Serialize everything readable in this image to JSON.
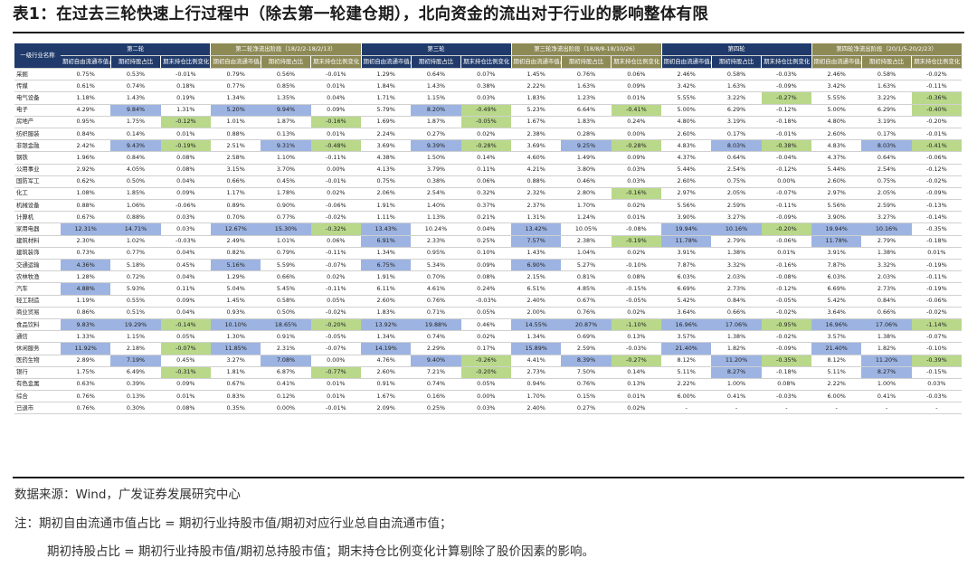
{
  "title": "表1：在过去三轮快速上行过程中（除去第一轮建仓期），北向资金的流出对于行业的影响整体有限",
  "table": {
    "corner_label": "一级行业名称",
    "groups": [
      {
        "label": "第二轮",
        "style": "blue"
      },
      {
        "label": "第二轮净流出阶段（18/2/2-18/2/13）",
        "style": "olive"
      },
      {
        "label": "第三轮",
        "style": "blue"
      },
      {
        "label": "第三轮净流出阶段（18/8/8-18/10/26）",
        "style": "olive"
      },
      {
        "label": "第四轮",
        "style": "blue"
      },
      {
        "label": "第四轮净流出阶段（20/1/5-20/2/23）",
        "style": "olive"
      }
    ],
    "subheaders": [
      "期初自由流通市值占比",
      "期初持股占比",
      "期末持仓比例变化"
    ],
    "rows": [
      {
        "name": "采掘",
        "v": [
          "0.75%",
          "0.53%",
          "-0.01%",
          "0.79%",
          "0.56%",
          "-0.01%",
          "1.29%",
          "0.64%",
          "0.07%",
          "1.45%",
          "0.76%",
          "0.06%",
          "2.46%",
          "0.58%",
          "-0.03%",
          "2.46%",
          "0.58%",
          "-0.02%"
        ],
        "h": {}
      },
      {
        "name": "传媒",
        "v": [
          "0.61%",
          "0.74%",
          "0.18%",
          "0.77%",
          "0.85%",
          "0.01%",
          "1.84%",
          "1.43%",
          "0.38%",
          "2.22%",
          "1.63%",
          "0.09%",
          "3.42%",
          "1.63%",
          "-0.09%",
          "3.42%",
          "1.63%",
          "-0.11%"
        ],
        "h": {}
      },
      {
        "name": "电气设备",
        "v": [
          "1.18%",
          "1.43%",
          "0.19%",
          "1.34%",
          "1.35%",
          "0.04%",
          "1.71%",
          "1.15%",
          "0.03%",
          "1.83%",
          "1.23%",
          "0.01%",
          "5.55%",
          "3.22%",
          "-0.27%",
          "5.55%",
          "3.22%",
          "-0.36%"
        ],
        "h": {
          "14": "g",
          "17": "g"
        }
      },
      {
        "name": "电子",
        "v": [
          "4.29%",
          "9.84%",
          "1.31%",
          "5.20%",
          "9.94%",
          "0.09%",
          "5.79%",
          "8.20%",
          "-0.49%",
          "5.23%",
          "6.64%",
          "-0.41%",
          "5.00%",
          "6.29%",
          "-0.12%",
          "5.00%",
          "6.29%",
          "-0.40%"
        ],
        "h": {
          "1": "b",
          "3": "b",
          "4": "b",
          "7": "b",
          "8": "g",
          "11": "g",
          "17": "g"
        }
      },
      {
        "name": "房地产",
        "v": [
          "0.95%",
          "1.75%",
          "-0.12%",
          "1.01%",
          "1.87%",
          "-0.16%",
          "1.69%",
          "1.87%",
          "-0.05%",
          "1.67%",
          "1.83%",
          "0.24%",
          "4.80%",
          "3.19%",
          "-0.18%",
          "4.80%",
          "3.19%",
          "-0.20%"
        ],
        "h": {
          "2": "g",
          "5": "g",
          "8": "g"
        }
      },
      {
        "name": "纺织服装",
        "v": [
          "0.84%",
          "0.14%",
          "0.01%",
          "0.88%",
          "0.13%",
          "0.01%",
          "2.24%",
          "0.27%",
          "0.02%",
          "2.38%",
          "0.28%",
          "0.00%",
          "2.60%",
          "0.17%",
          "-0.01%",
          "2.60%",
          "0.17%",
          "-0.01%"
        ],
        "h": {}
      },
      {
        "name": "非银金融",
        "v": [
          "2.42%",
          "9.43%",
          "-0.19%",
          "2.51%",
          "9.31%",
          "-0.48%",
          "3.69%",
          "9.39%",
          "-0.28%",
          "3.69%",
          "9.25%",
          "-0.28%",
          "4.83%",
          "8.03%",
          "-0.38%",
          "4.83%",
          "8.03%",
          "-0.41%"
        ],
        "h": {
          "1": "b",
          "2": "g",
          "4": "b",
          "5": "g",
          "7": "b",
          "8": "g",
          "10": "b",
          "11": "g",
          "13": "b",
          "14": "g",
          "16": "b",
          "17": "g"
        }
      },
      {
        "name": "钢铁",
        "v": [
          "1.96%",
          "0.84%",
          "0.08%",
          "2.58%",
          "1.10%",
          "-0.11%",
          "4.38%",
          "1.50%",
          "0.14%",
          "4.60%",
          "1.49%",
          "0.09%",
          "4.37%",
          "0.64%",
          "-0.04%",
          "4.37%",
          "0.64%",
          "-0.06%"
        ],
        "h": {}
      },
      {
        "name": "公用事业",
        "v": [
          "2.92%",
          "4.05%",
          "0.08%",
          "3.15%",
          "3.70%",
          "0.00%",
          "4.13%",
          "3.79%",
          "0.11%",
          "4.21%",
          "3.80%",
          "0.03%",
          "5.44%",
          "2.54%",
          "-0.12%",
          "5.44%",
          "2.54%",
          "-0.12%"
        ],
        "h": {}
      },
      {
        "name": "国防军工",
        "v": [
          "0.62%",
          "0.50%",
          "0.04%",
          "0.66%",
          "0.45%",
          "-0.01%",
          "0.75%",
          "0.38%",
          "0.06%",
          "0.88%",
          "0.46%",
          "0.03%",
          "2.60%",
          "0.75%",
          "0.00%",
          "2.60%",
          "0.75%",
          "-0.02%"
        ],
        "h": {}
      },
      {
        "name": "化工",
        "v": [
          "1.08%",
          "1.85%",
          "0.09%",
          "1.17%",
          "1.78%",
          "0.02%",
          "2.06%",
          "2.54%",
          "0.32%",
          "2.32%",
          "2.80%",
          "-0.16%",
          "2.97%",
          "2.05%",
          "-0.07%",
          "2.97%",
          "2.05%",
          "-0.09%"
        ],
        "h": {
          "11": "g"
        }
      },
      {
        "name": "机械设备",
        "v": [
          "0.88%",
          "1.06%",
          "-0.06%",
          "0.89%",
          "0.90%",
          "-0.06%",
          "1.91%",
          "1.40%",
          "0.37%",
          "2.37%",
          "1.70%",
          "0.02%",
          "5.56%",
          "2.59%",
          "-0.11%",
          "5.56%",
          "2.59%",
          "-0.13%"
        ],
        "h": {}
      },
      {
        "name": "计算机",
        "v": [
          "0.67%",
          "0.88%",
          "0.03%",
          "0.70%",
          "0.77%",
          "-0.02%",
          "1.11%",
          "1.13%",
          "0.21%",
          "1.31%",
          "1.24%",
          "0.01%",
          "3.90%",
          "3.27%",
          "-0.09%",
          "3.90%",
          "3.27%",
          "-0.14%"
        ],
        "h": {}
      },
      {
        "name": "家用电器",
        "v": [
          "12.31%",
          "14.71%",
          "0.03%",
          "12.67%",
          "15.30%",
          "-0.32%",
          "13.43%",
          "10.24%",
          "0.04%",
          "13.42%",
          "10.05%",
          "-0.08%",
          "19.94%",
          "10.16%",
          "-0.20%",
          "19.94%",
          "10.16%",
          "-0.35%"
        ],
        "h": {
          "0": "b",
          "1": "b",
          "3": "b",
          "4": "b",
          "5": "g",
          "6": "b",
          "9": "b",
          "12": "b",
          "13": "b",
          "14": "g",
          "15": "b",
          "16": "b"
        }
      },
      {
        "name": "建筑材料",
        "v": [
          "2.30%",
          "1.02%",
          "-0.03%",
          "2.49%",
          "1.01%",
          "0.06%",
          "6.91%",
          "2.33%",
          "0.25%",
          "7.57%",
          "2.38%",
          "-0.19%",
          "11.78%",
          "2.79%",
          "-0.06%",
          "11.78%",
          "2.79%",
          "-0.18%"
        ],
        "h": {
          "6": "b",
          "9": "b",
          "11": "g",
          "12": "b",
          "15": "b"
        }
      },
      {
        "name": "建筑装饰",
        "v": [
          "0.73%",
          "0.77%",
          "0.04%",
          "0.82%",
          "0.79%",
          "-0.11%",
          "1.34%",
          "0.95%",
          "0.10%",
          "1.43%",
          "1.04%",
          "0.02%",
          "3.91%",
          "1.38%",
          "0.01%",
          "3.91%",
          "1.38%",
          "0.01%"
        ],
        "h": {}
      },
      {
        "name": "交通运输",
        "v": [
          "4.36%",
          "5.18%",
          "0.45%",
          "5.16%",
          "5.59%",
          "-0.07%",
          "6.75%",
          "5.34%",
          "0.09%",
          "6.90%",
          "5.27%",
          "-0.10%",
          "7.87%",
          "3.32%",
          "-0.16%",
          "7.87%",
          "3.32%",
          "-0.19%"
        ],
        "h": {
          "0": "b",
          "3": "b",
          "6": "b",
          "9": "b"
        }
      },
      {
        "name": "农林牧渔",
        "v": [
          "1.28%",
          "0.72%",
          "0.04%",
          "1.29%",
          "0.66%",
          "0.02%",
          "1.91%",
          "0.70%",
          "0.08%",
          "2.15%",
          "0.81%",
          "0.08%",
          "6.03%",
          "2.03%",
          "-0.08%",
          "6.03%",
          "2.03%",
          "-0.11%"
        ],
        "h": {}
      },
      {
        "name": "汽车",
        "v": [
          "4.88%",
          "5.93%",
          "0.11%",
          "5.04%",
          "5.45%",
          "-0.11%",
          "6.11%",
          "4.61%",
          "0.24%",
          "6.51%",
          "4.85%",
          "-0.15%",
          "6.69%",
          "2.73%",
          "-0.12%",
          "6.69%",
          "2.73%",
          "-0.19%"
        ],
        "h": {
          "0": "b"
        }
      },
      {
        "name": "轻工制造",
        "v": [
          "1.19%",
          "0.55%",
          "0.09%",
          "1.45%",
          "0.58%",
          "0.05%",
          "2.60%",
          "0.76%",
          "-0.03%",
          "2.40%",
          "0.67%",
          "-0.05%",
          "5.42%",
          "0.84%",
          "-0.05%",
          "5.42%",
          "0.84%",
          "-0.06%"
        ],
        "h": {}
      },
      {
        "name": "商业贸易",
        "v": [
          "0.86%",
          "0.51%",
          "0.04%",
          "0.93%",
          "0.50%",
          "-0.02%",
          "1.83%",
          "0.71%",
          "0.05%",
          "2.00%",
          "0.76%",
          "0.02%",
          "3.64%",
          "0.66%",
          "-0.02%",
          "3.64%",
          "0.66%",
          "-0.02%"
        ],
        "h": {}
      },
      {
        "name": "食品饮料",
        "v": [
          "9.83%",
          "19.29%",
          "-0.14%",
          "10.10%",
          "18.65%",
          "-0.20%",
          "13.92%",
          "19.88%",
          "0.46%",
          "14.55%",
          "20.87%",
          "-1.10%",
          "16.96%",
          "17.06%",
          "-0.95%",
          "16.96%",
          "17.06%",
          "-1.14%"
        ],
        "h": {
          "0": "b",
          "1": "b",
          "2": "g",
          "3": "b",
          "4": "b",
          "5": "g",
          "6": "b",
          "7": "b",
          "9": "b",
          "10": "b",
          "11": "g",
          "12": "b",
          "13": "b",
          "14": "g",
          "15": "b",
          "16": "b",
          "17": "g"
        }
      },
      {
        "name": "通信",
        "v": [
          "1.33%",
          "1.15%",
          "0.05%",
          "1.30%",
          "0.91%",
          "-0.05%",
          "1.34%",
          "0.74%",
          "0.02%",
          "1.34%",
          "0.69%",
          "0.13%",
          "3.57%",
          "1.38%",
          "-0.02%",
          "3.57%",
          "1.38%",
          "-0.07%"
        ],
        "h": {}
      },
      {
        "name": "休闲服务",
        "v": [
          "11.92%",
          "2.18%",
          "-0.07%",
          "11.85%",
          "2.31%",
          "-0.07%",
          "14.19%",
          "2.29%",
          "0.17%",
          "15.89%",
          "2.59%",
          "-0.03%",
          "21.40%",
          "1.82%",
          "-0.09%",
          "21.40%",
          "1.82%",
          "-0.10%"
        ],
        "h": {
          "0": "b",
          "2": "g",
          "3": "b",
          "6": "b",
          "9": "b",
          "12": "b",
          "15": "b"
        }
      },
      {
        "name": "医药生物",
        "v": [
          "2.89%",
          "7.19%",
          "0.45%",
          "3.27%",
          "7.08%",
          "0.00%",
          "4.76%",
          "9.40%",
          "-0.26%",
          "4.41%",
          "8.39%",
          "-0.27%",
          "8.12%",
          "11.20%",
          "-0.35%",
          "8.12%",
          "11.20%",
          "-0.39%"
        ],
        "h": {
          "1": "b",
          "4": "b",
          "7": "b",
          "8": "g",
          "10": "b",
          "11": "g",
          "13": "b",
          "14": "g",
          "16": "b",
          "17": "g"
        }
      },
      {
        "name": "银行",
        "v": [
          "1.75%",
          "6.49%",
          "-0.31%",
          "1.81%",
          "6.87%",
          "-0.77%",
          "2.60%",
          "7.21%",
          "-0.20%",
          "2.73%",
          "7.50%",
          "0.14%",
          "5.11%",
          "8.27%",
          "-0.18%",
          "5.11%",
          "8.27%",
          "-0.15%"
        ],
        "h": {
          "2": "g",
          "5": "g",
          "8": "g",
          "13": "b",
          "16": "b"
        }
      },
      {
        "name": "有色金属",
        "v": [
          "0.63%",
          "0.39%",
          "0.09%",
          "0.67%",
          "0.41%",
          "0.01%",
          "0.91%",
          "0.74%",
          "0.05%",
          "0.94%",
          "0.76%",
          "0.13%",
          "2.22%",
          "1.00%",
          "0.08%",
          "2.22%",
          "1.00%",
          "0.03%"
        ],
        "h": {}
      },
      {
        "name": "综合",
        "v": [
          "0.76%",
          "0.13%",
          "0.01%",
          "0.83%",
          "0.12%",
          "0.01%",
          "1.67%",
          "0.16%",
          "0.00%",
          "1.70%",
          "0.15%",
          "0.01%",
          "6.00%",
          "0.41%",
          "-0.03%",
          "6.00%",
          "0.41%",
          "-0.03%"
        ],
        "h": {}
      },
      {
        "name": "已退市",
        "v": [
          "0.76%",
          "0.30%",
          "0.08%",
          "0.35%",
          "0.00%",
          "-0.01%",
          "2.09%",
          "0.25%",
          "0.03%",
          "2.40%",
          "0.27%",
          "0.02%",
          "-",
          "-",
          "-",
          "-",
          "-",
          "-"
        ],
        "h": {}
      }
    ]
  },
  "source": "数据来源：Wind，广发证券发展研究中心",
  "note1": "注：期初自由流通市值占比 = 期初行业持股市值/期初对应行业总自由流通市值；",
  "note2": "期初持股占比 = 期初行业持股市值/期初总持股市值；期末持仓比例变化计算剔除了股价因素的影响。"
}
